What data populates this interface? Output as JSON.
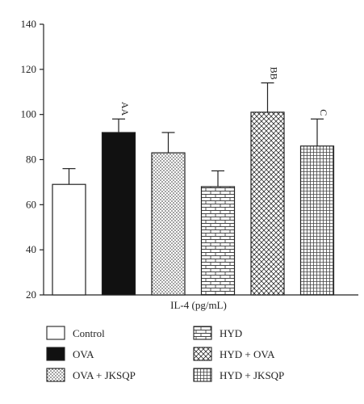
{
  "chart_data": {
    "type": "bar",
    "xlabel": "IL-4 (pg/mL)",
    "ylim": [
      20,
      140
    ],
    "yticks": [
      20,
      40,
      60,
      80,
      100,
      120,
      140
    ],
    "grid": false,
    "legend_placement": "bottom",
    "categories": [
      "Control",
      "OVA",
      "OVA + JKSQP",
      "HYD",
      "HYD + OVA",
      "HYD + JKSQP"
    ],
    "values": [
      69,
      92,
      83,
      68,
      101,
      86
    ],
    "errors": [
      7,
      6,
      9,
      7,
      13,
      12
    ],
    "annotations": [
      "",
      "AA",
      "",
      "",
      "BB",
      "C"
    ],
    "patterns": [
      "none",
      "solid",
      "dots",
      "bricks",
      "checker",
      "grid"
    ],
    "colors": {
      "bar_fill": "#ffffff",
      "bar_solid": "#111111",
      "stroke": "#222222"
    }
  }
}
